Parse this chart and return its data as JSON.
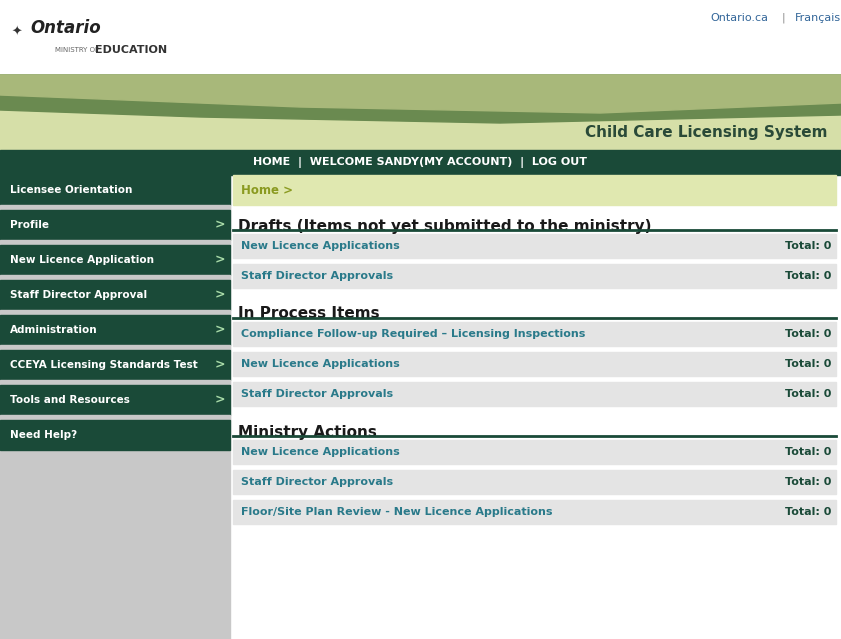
{
  "bg_color": "#ffffff",
  "banner_color_light": "#d6dfa8",
  "banner_color_mid": "#a8b87a",
  "banner_color_dark": "#6a8a50",
  "banner_text": "Child Care Licensing System",
  "banner_text_color": "#2a4a38",
  "nav_bg": "#1a4a38",
  "nav_text": "HOME  |  WELCOME SANDY(MY ACCOUNT)  |  LOG OUT",
  "nav_text_color": "#ffffff",
  "ontario_ca_text": "Ontario.ca",
  "francais_text": "Français",
  "link_color": "#336699",
  "sidebar_bg": "#1a4a38",
  "sidebar_text_color": "#ffffff",
  "sidebar_gap_color": "#c8c8c8",
  "sidebar_items": [
    "Licensee Orientation",
    "Profile",
    "New Licence Application",
    "Staff Director Approval",
    "Administration",
    "CCEYA Licensing Standards Test",
    "Tools and Resources",
    "Need Help?"
  ],
  "sidebar_has_arrow": [
    false,
    true,
    true,
    true,
    true,
    true,
    true,
    false
  ],
  "breadcrumb_bg": "#e0e8b0",
  "breadcrumb_text": "Home >",
  "breadcrumb_text_color": "#8a9a20",
  "section_title_color": "#1a1a1a",
  "section_line_color": "#1a4a38",
  "row_bg": "#e4e4e4",
  "row_text_color": "#2a7a8a",
  "row_total_color": "#1a4a38",
  "white_row_bg": "#f0f0f0",
  "sections": [
    {
      "title": "Drafts (Items not yet submitted to the ministry)",
      "rows": [
        {
          "label": "New Licence Applications",
          "total": "Total: 0"
        },
        {
          "label": "Staff Director Approvals",
          "total": "Total: 0"
        }
      ]
    },
    {
      "title": "In Process Items",
      "rows": [
        {
          "label": "Compliance Follow-up Required – Licensing Inspections",
          "total": "Total: 0"
        },
        {
          "label": "New Licence Applications",
          "total": "Total: 0"
        },
        {
          "label": "Staff Director Approvals",
          "total": "Total: 0"
        }
      ]
    },
    {
      "title": "Ministry Actions",
      "rows": [
        {
          "label": "New Licence Applications",
          "total": "Total: 0"
        },
        {
          "label": "Staff Director Approvals",
          "total": "Total: 0"
        },
        {
          "label": "Floor/Site Plan Review - New Licence Applications",
          "total": "Total: 0"
        }
      ]
    }
  ],
  "fig_width": 8.41,
  "fig_height": 6.39,
  "dpi": 100
}
